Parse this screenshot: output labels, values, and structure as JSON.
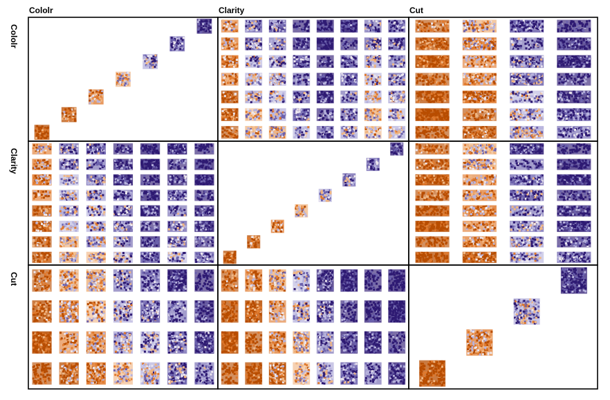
{
  "chart_data": {
    "type": "heatmap",
    "title": "",
    "plot_kind": "mosaic scatterplot matrix of categorical variables",
    "variables": [
      {
        "name": "Color",
        "col_label": "Cololr",
        "row_label": "Cololr",
        "levels": 7
      },
      {
        "name": "Clarity",
        "col_label": "Clarity",
        "row_label": "Clarity",
        "levels": 8
      },
      {
        "name": "Cut",
        "col_label": "Cut",
        "row_label": "Cut",
        "levels": 4
      }
    ],
    "color_scale": {
      "low": "#c85a00",
      "mid": "#f2f2f2",
      "high": "#2d0a6e"
    },
    "colors": {
      "orange_dark": "#b84d00",
      "orange": "#e07a2e",
      "orange_light": "#f0b683",
      "neutral": "#ebe6ee",
      "purple_light": "#b7b3dd",
      "purple": "#6c62ad",
      "purple_dark": "#2e1a73"
    },
    "panels": [
      {
        "row": "Color",
        "col": "Clarity",
        "ramp": [
          -0.5,
          0.2,
          0.25,
          0.6,
          0.9,
          0.6,
          0.2,
          0.4
        ]
      },
      {
        "row": "Color",
        "col": "Cut",
        "ramp": [
          -0.9,
          -0.4,
          0.4,
          0.8
        ]
      },
      {
        "row": "Clarity",
        "col": "Color",
        "ramp": [
          -0.5,
          0.2,
          0.3,
          0.6,
          0.9,
          0.6,
          0.9
        ]
      },
      {
        "row": "Clarity",
        "col": "Cut",
        "ramp": [
          -0.9,
          -0.3,
          0.5,
          0.9
        ]
      },
      {
        "row": "Cut",
        "col": "Color",
        "ramp": [
          -0.8,
          -0.3,
          -0.2,
          0.2,
          0.4,
          0.6,
          0.8
        ]
      },
      {
        "row": "Cut",
        "col": "Clarity",
        "ramp": [
          -0.9,
          -0.7,
          -0.3,
          0.1,
          0.5,
          0.8,
          0.9,
          1.0
        ]
      }
    ]
  }
}
